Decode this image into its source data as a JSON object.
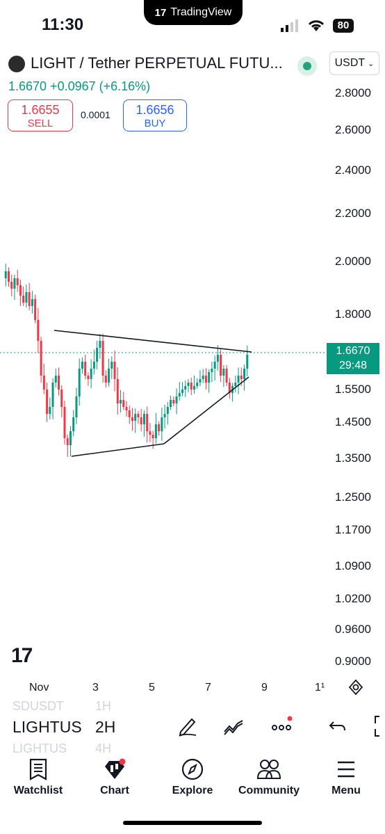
{
  "status_bar": {
    "time": "11:30",
    "app_pill": "TradingView",
    "battery": "80"
  },
  "header": {
    "symbol": "LIGHT / Tether PERPETUAL FUTU...",
    "price_change": "1.6670 +0.0967 (+6.16%)",
    "currency": "USDT"
  },
  "trade": {
    "sell_price": "1.6655",
    "sell_label": "SELL",
    "spread": "0.0001",
    "buy_price": "1.6656",
    "buy_label": "BUY"
  },
  "price_axis": {
    "ticks": [
      "2.8000",
      "2.6000",
      "2.4000",
      "2.2000",
      "2.0000",
      "1.8000",
      "1.5500",
      "1.4500",
      "1.3500",
      "1.2500",
      "1.1700",
      "1.0900",
      "1.0200",
      "0.9600",
      "0.9000"
    ],
    "current_price": "1.6670",
    "countdown": "29:48"
  },
  "time_axis": {
    "ticks": [
      "Nov",
      "3",
      "5",
      "7",
      "9",
      "1¹"
    ]
  },
  "chart_data": {
    "type": "candlestick",
    "symbol": "LIGHT / Tether PERPETUAL FUTURES",
    "interval": "2H",
    "current_price": 1.667,
    "pattern": "triangle",
    "colors": {
      "up": "#089981",
      "down": "#f23645",
      "last_price_line": "#089981"
    }
  },
  "toolbar": {
    "symbol_prev": "SDUSDT",
    "symbol_current": "LIGHTUS",
    "symbol_next": "LIGHTUS",
    "interval_prev": "1H",
    "interval_current": "2H",
    "interval_next": "4H",
    "icons": [
      "pen-icon",
      "indicators-icon",
      "more-icon",
      "undo-icon",
      "fullscreen-icon"
    ]
  },
  "nav": {
    "items": [
      {
        "label": "Watchlist",
        "icon": "watchlist-icon"
      },
      {
        "label": "Chart",
        "icon": "chart-icon"
      },
      {
        "label": "Explore",
        "icon": "compass-icon"
      },
      {
        "label": "Community",
        "icon": "community-icon"
      },
      {
        "label": "Menu",
        "icon": "menu-icon"
      }
    ]
  }
}
